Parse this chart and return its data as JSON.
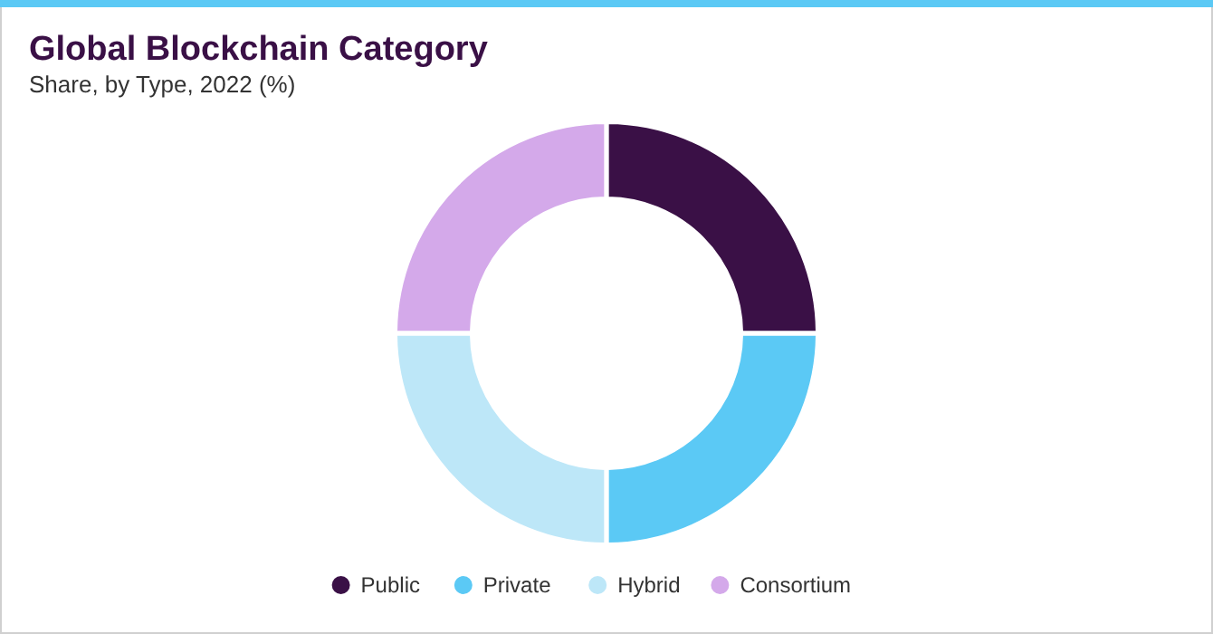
{
  "chart_data": {
    "type": "donut",
    "title": "Global Blockchain Category",
    "subtitle": "Share, by Type, 2022 (%)",
    "categories": [
      "Public",
      "Private",
      "Hybrid",
      "Consortium"
    ],
    "values": [
      25,
      25,
      25,
      25
    ],
    "colors": [
      "#3a1046",
      "#5bc9f5",
      "#bde7f8",
      "#d4a9ea"
    ],
    "legend": "bottom"
  }
}
